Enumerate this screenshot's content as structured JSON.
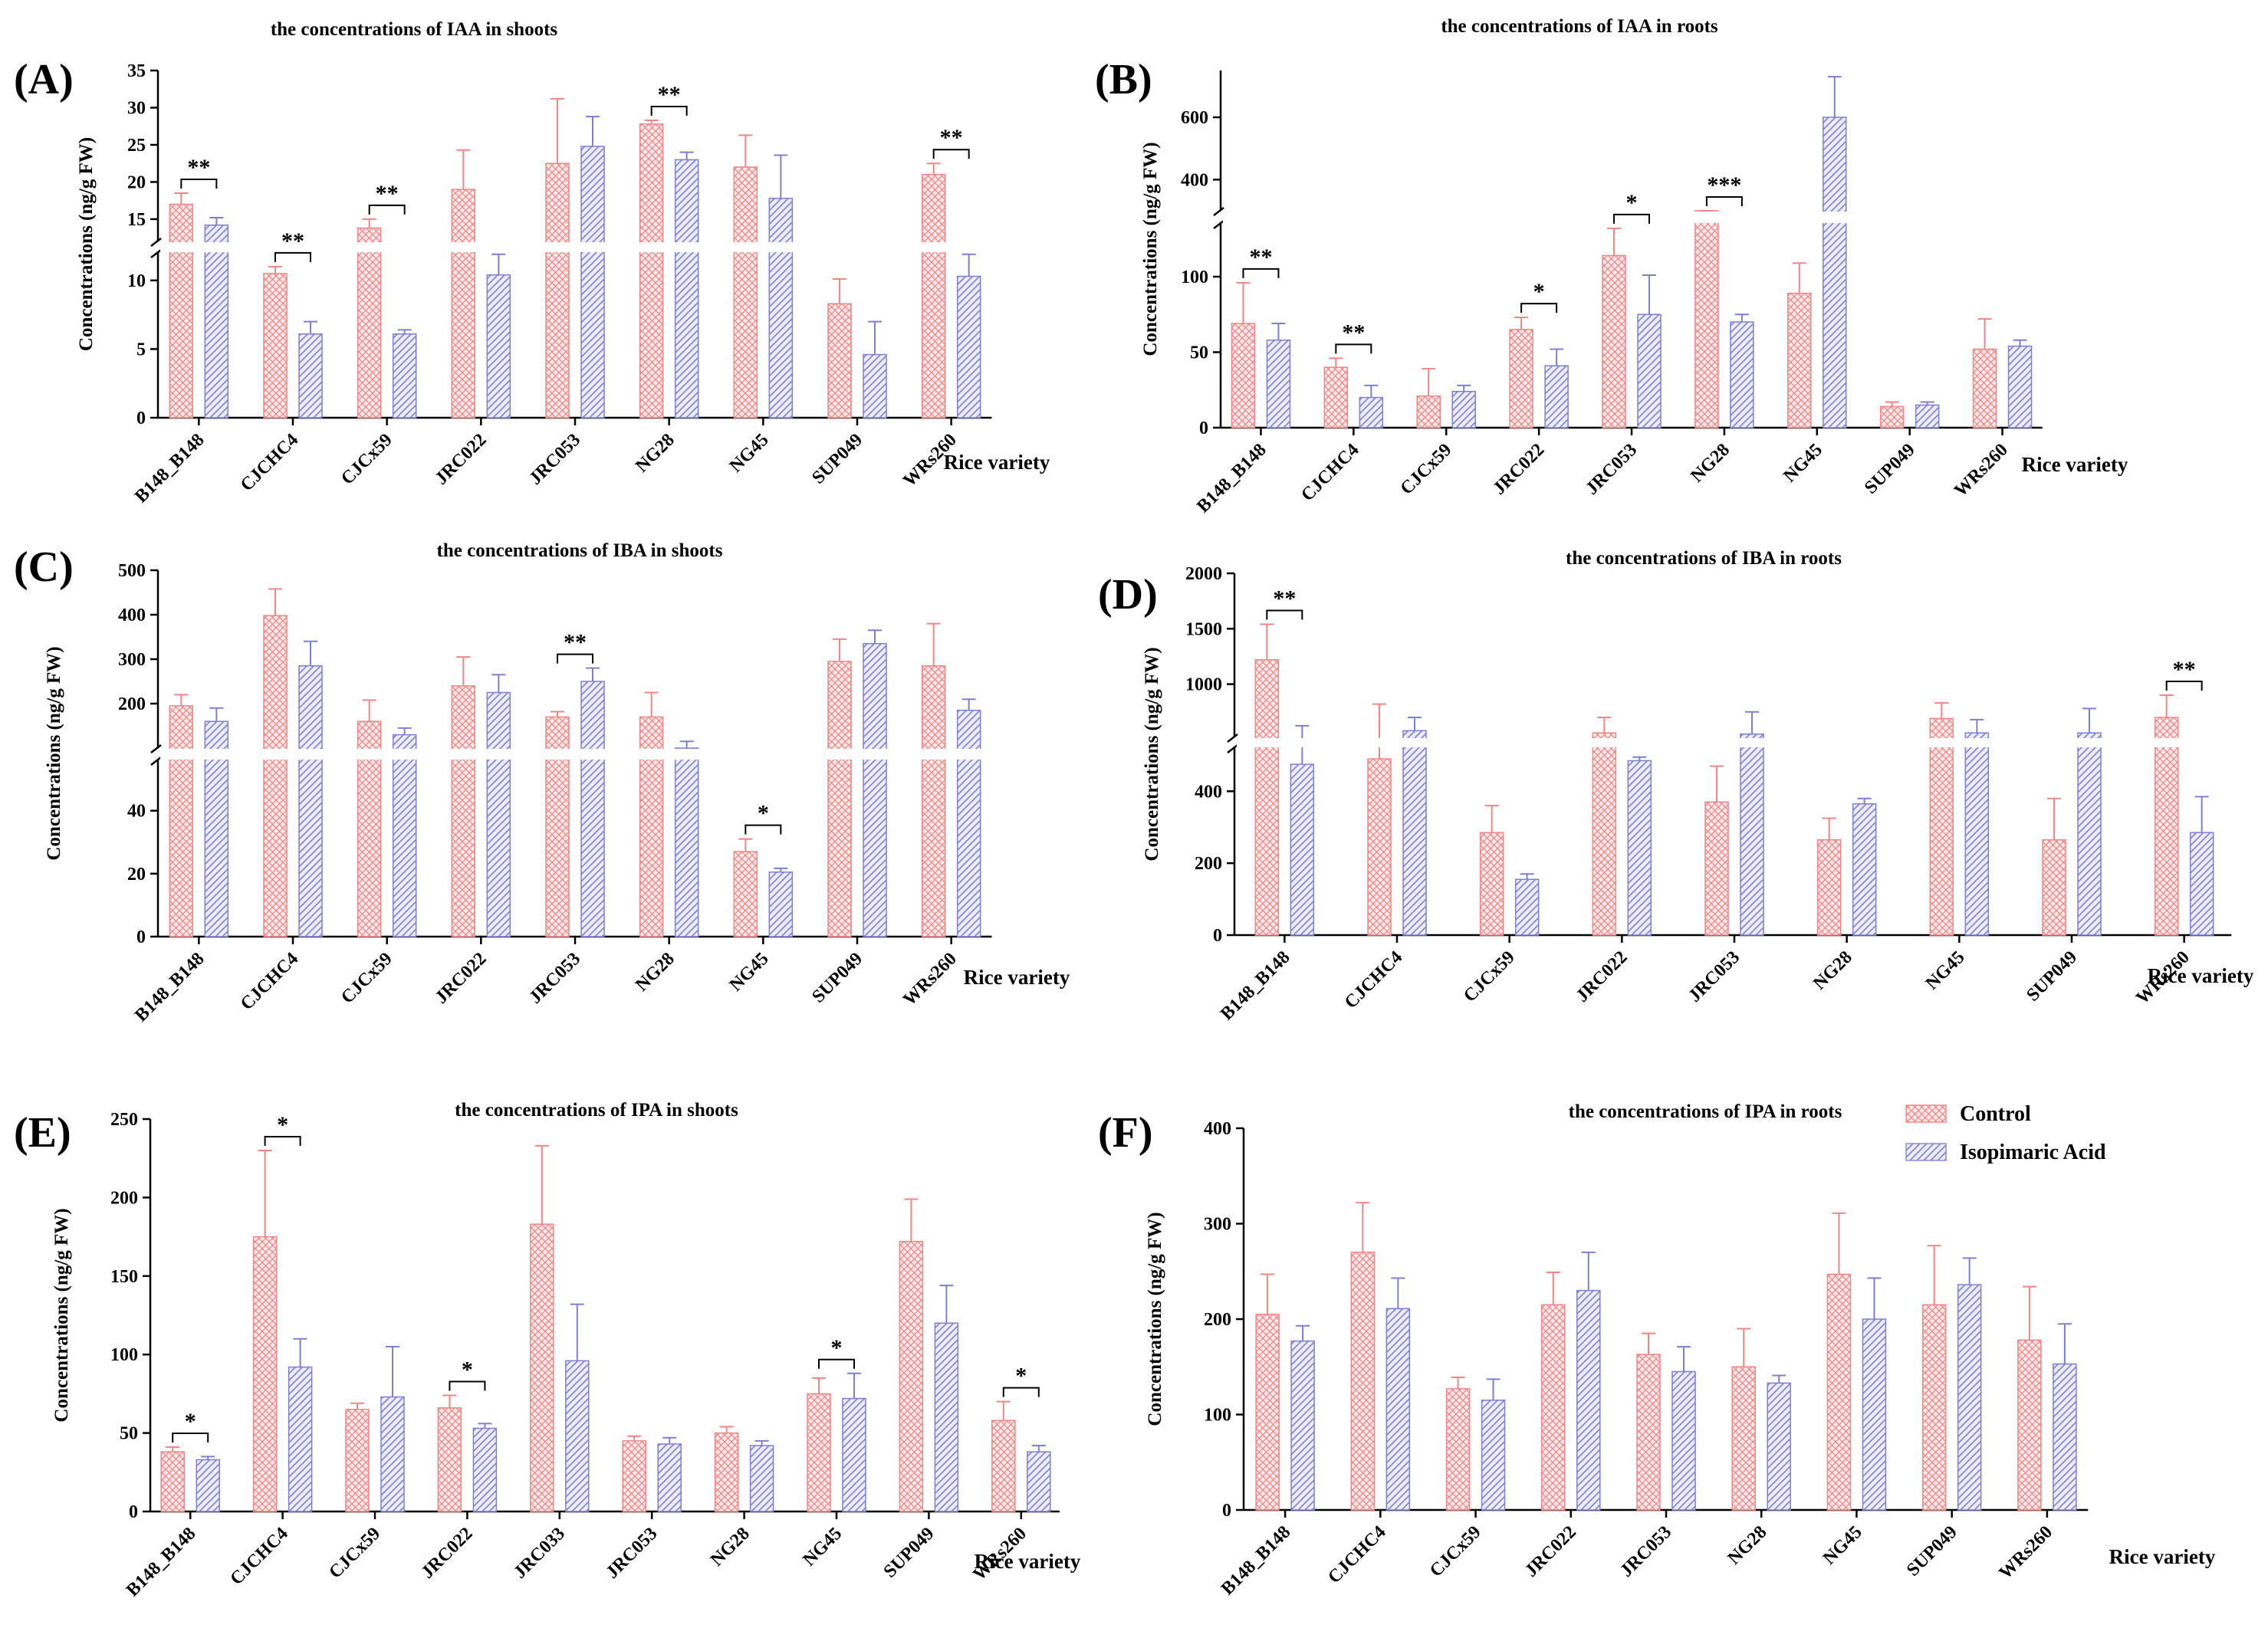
{
  "figure": {
    "legend": [
      {
        "name": "Control",
        "color": "#f08a8a",
        "pattern": "cross"
      },
      {
        "name": "Isopimaric Acid",
        "color": "#8c8cd8",
        "pattern": "diag"
      }
    ]
  },
  "chart_data": [
    {
      "panel": "(A)",
      "type": "bar",
      "title": "the concentrations of IAA in shoots",
      "xlabel": "Rice variety",
      "ylabel": "Concentrations (ng/g FW)",
      "categories": [
        "B148_B148",
        "CJCHC4",
        "CJCx59",
        "JRC022",
        "JRC053",
        "NG28",
        "NG45",
        "SUP049",
        "WRs260"
      ],
      "series": [
        {
          "name": "Control",
          "values": [
            17.0,
            10.5,
            13.8,
            19.0,
            22.5,
            27.8,
            22.0,
            8.3,
            21.0
          ],
          "errors": [
            1.5,
            0.5,
            1.2,
            5.3,
            8.7,
            0.5,
            4.3,
            1.8,
            1.5
          ]
        },
        {
          "name": "Isopimaric Acid",
          "values": [
            14.2,
            6.1,
            6.1,
            10.4,
            24.8,
            23.0,
            17.8,
            4.6,
            10.3
          ],
          "errors": [
            1.0,
            0.9,
            0.3,
            1.5,
            4.0,
            1.0,
            5.8,
            2.4,
            1.6
          ]
        }
      ],
      "axis": {
        "type": "broken",
        "lower": [
          0,
          12
        ],
        "upper": [
          12,
          35
        ],
        "lower_ticks": [
          0,
          5,
          10
        ],
        "upper_ticks": [
          15,
          20,
          25,
          30,
          35
        ]
      },
      "significance": [
        {
          "index": 0,
          "label": "**"
        },
        {
          "index": 1,
          "label": "**"
        },
        {
          "index": 2,
          "label": "**"
        },
        {
          "index": 5,
          "label": "**"
        },
        {
          "index": 8,
          "label": "**"
        }
      ]
    },
    {
      "panel": "(B)",
      "type": "bar",
      "title": "the concentrations of IAA in roots",
      "xlabel": "Rice variety",
      "ylabel": "Concentrations (ng/g FW)",
      "categories": [
        "B148_B148",
        "CJCHC4",
        "CJCx59",
        "JRC022",
        "JRC053",
        "NG28",
        "NG45",
        "SUP049",
        "WRs260"
      ],
      "series": [
        {
          "name": "Control",
          "values": [
            69,
            40,
            21,
            65,
            114,
            270,
            89,
            14,
            52
          ],
          "errors": [
            27,
            6,
            18,
            8,
            18,
            10,
            20,
            3,
            20
          ]
        },
        {
          "name": "Isopimaric Acid",
          "values": [
            58,
            20,
            24,
            41,
            75,
            70,
            600,
            15,
            54
          ],
          "errors": [
            11,
            8,
            4,
            11,
            26,
            5,
            130,
            2,
            4
          ]
        }
      ],
      "axis": {
        "type": "broken",
        "lower": [
          0,
          135
        ],
        "upper": [
          300,
          750
        ],
        "lower_ticks": [
          0,
          50,
          100
        ],
        "upper_ticks": [
          400,
          600
        ]
      },
      "significance": [
        {
          "index": 0,
          "label": "**"
        },
        {
          "index": 1,
          "label": "**"
        },
        {
          "index": 3,
          "label": "*"
        },
        {
          "index": 4,
          "label": "*"
        },
        {
          "index": 5,
          "label": "***"
        }
      ]
    },
    {
      "panel": "(C)",
      "type": "bar",
      "title": "the concentrations of IBA in shoots",
      "xlabel": "Rice variety",
      "ylabel": "Concentrations (ng/g FW)",
      "categories": [
        "B148_B148",
        "CJCHC4",
        "CJCx59",
        "JRC022",
        "JRC053",
        "NG28",
        "NG45",
        "SUP049",
        "WRs260"
      ],
      "series": [
        {
          "name": "Control",
          "values": [
            195,
            398,
            160,
            240,
            170,
            170,
            27,
            295,
            285
          ],
          "errors": [
            25,
            60,
            48,
            65,
            12,
            55,
            4,
            50,
            95
          ]
        },
        {
          "name": "Isopimaric Acid",
          "values": [
            160,
            285,
            130,
            225,
            250,
            100,
            20.5,
            335,
            185
          ],
          "errors": [
            30,
            55,
            15,
            40,
            30,
            15,
            1.2,
            30,
            25
          ]
        }
      ],
      "axis": {
        "type": "broken",
        "lower": [
          0,
          56
        ],
        "upper": [
          100,
          500
        ],
        "lower_ticks": [
          0,
          20,
          40
        ],
        "upper_ticks": [
          200,
          300,
          400,
          500
        ]
      },
      "significance": [
        {
          "index": 4,
          "label": "**"
        },
        {
          "index": 6,
          "label": "*"
        }
      ]
    },
    {
      "panel": "(D)",
      "type": "bar",
      "title": "the concentrations of IBA in roots",
      "xlabel": "Rice variety",
      "ylabel": "Concentrations (ng/g FW)",
      "categories": [
        "B148_B148",
        "CJCHC4",
        "CJCx59",
        "JRC022",
        "JRC053",
        "NG28",
        "NG45",
        "SUP049",
        "WRs260"
      ],
      "series": [
        {
          "name": "Control",
          "values": [
            1220,
            490,
            285,
            560,
            370,
            265,
            690,
            265,
            700
          ],
          "errors": [
            320,
            330,
            75,
            140,
            100,
            60,
            140,
            115,
            200
          ]
        },
        {
          "name": "Isopimaric Acid",
          "values": [
            475,
            580,
            155,
            485,
            550,
            365,
            560,
            560,
            285
          ],
          "errors": [
            150,
            120,
            15,
            10,
            200,
            15,
            120,
            220,
            100
          ]
        }
      ],
      "axis": {
        "type": "broken",
        "lower": [
          0,
          520
        ],
        "upper": [
          520,
          2000
        ],
        "lower_ticks": [
          0,
          200,
          400
        ],
        "upper_ticks": [
          1000,
          1500,
          2000
        ]
      },
      "significance": [
        {
          "index": 0,
          "label": "**"
        },
        {
          "index": 8,
          "label": "**"
        }
      ]
    },
    {
      "panel": "(E)",
      "type": "bar",
      "title": "the concentrations of IPA in shoots",
      "xlabel": "Rice variety",
      "ylabel": "Concentrations (ng/g FW)",
      "categories": [
        "B148_B148",
        "CJCHC4",
        "CJCx59",
        "JRC022",
        "JRC033",
        "JRC053",
        "NG28",
        "NG45",
        "SUP049",
        "WRs260"
      ],
      "series": [
        {
          "name": "Control",
          "values": [
            38,
            175,
            65,
            66,
            183,
            45,
            50,
            75,
            172,
            58
          ],
          "errors": [
            3,
            55,
            4,
            8,
            50,
            3,
            4,
            10,
            27,
            12
          ]
        },
        {
          "name": "Isopimaric Acid",
          "values": [
            33,
            92,
            73,
            53,
            96,
            43,
            42,
            72,
            120,
            38
          ],
          "errors": [
            2,
            18,
            32,
            3,
            36,
            4,
            3,
            16,
            24,
            4
          ]
        }
      ],
      "axis": {
        "type": "linear",
        "range": [
          0,
          250
        ],
        "ticks": [
          0,
          50,
          100,
          150,
          200,
          250
        ]
      },
      "significance": [
        {
          "index": 0,
          "label": "*"
        },
        {
          "index": 1,
          "label": "*"
        },
        {
          "index": 3,
          "label": "*"
        },
        {
          "index": 7,
          "label": "*"
        },
        {
          "index": 9,
          "label": "*"
        }
      ]
    },
    {
      "panel": "(F)",
      "type": "bar",
      "title": "the concentrations of IPA in roots",
      "xlabel": "Rice variety",
      "ylabel": "Concentrations (ng/g FW)",
      "categories": [
        "B148_B148",
        "CJCHC4",
        "CJCx59",
        "JRC022",
        "JRC053",
        "NG28",
        "NG45",
        "SUP049",
        "WRs260"
      ],
      "series": [
        {
          "name": "Control",
          "values": [
            205,
            270,
            127,
            215,
            163,
            150,
            247,
            215,
            178
          ],
          "errors": [
            42,
            52,
            12,
            34,
            22,
            40,
            64,
            62,
            56
          ]
        },
        {
          "name": "Isopimaric Acid",
          "values": [
            177,
            211,
            115,
            230,
            145,
            133,
            200,
            236,
            153
          ],
          "errors": [
            16,
            32,
            22,
            40,
            26,
            8,
            43,
            28,
            42
          ]
        }
      ],
      "axis": {
        "type": "linear",
        "range": [
          0,
          400
        ],
        "ticks": [
          0,
          100,
          200,
          300,
          400
        ]
      },
      "significance": []
    }
  ]
}
